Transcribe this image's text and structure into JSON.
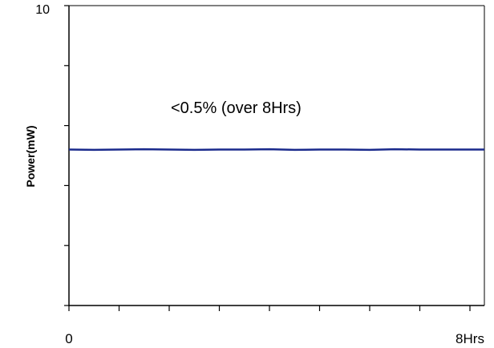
{
  "chart_data": {
    "type": "line",
    "title": "",
    "annotation": "<0.5% (over 8Hrs)",
    "ylabel": "Power(mW)",
    "xlabel": "",
    "xlim": [
      0,
      8
    ],
    "ylim": [
      0,
      10
    ],
    "x_tick_labels": [
      {
        "value": 0,
        "label": "0"
      },
      {
        "value": 8,
        "label": "8Hrs"
      }
    ],
    "y_tick_labels": [
      {
        "value": 10,
        "label": "10"
      }
    ],
    "grid": false,
    "series": [
      {
        "color": "#1a2a8c",
        "x": [
          0,
          0.5,
          1,
          1.5,
          2,
          2.5,
          3,
          3.5,
          4,
          4.5,
          5,
          5.5,
          6,
          6.5,
          7,
          7.5,
          8
        ],
        "y": [
          5.2,
          5.19,
          5.2,
          5.21,
          5.2,
          5.19,
          5.2,
          5.2,
          5.21,
          5.19,
          5.2,
          5.2,
          5.19,
          5.21,
          5.2,
          5.2,
          5.2
        ]
      }
    ]
  }
}
